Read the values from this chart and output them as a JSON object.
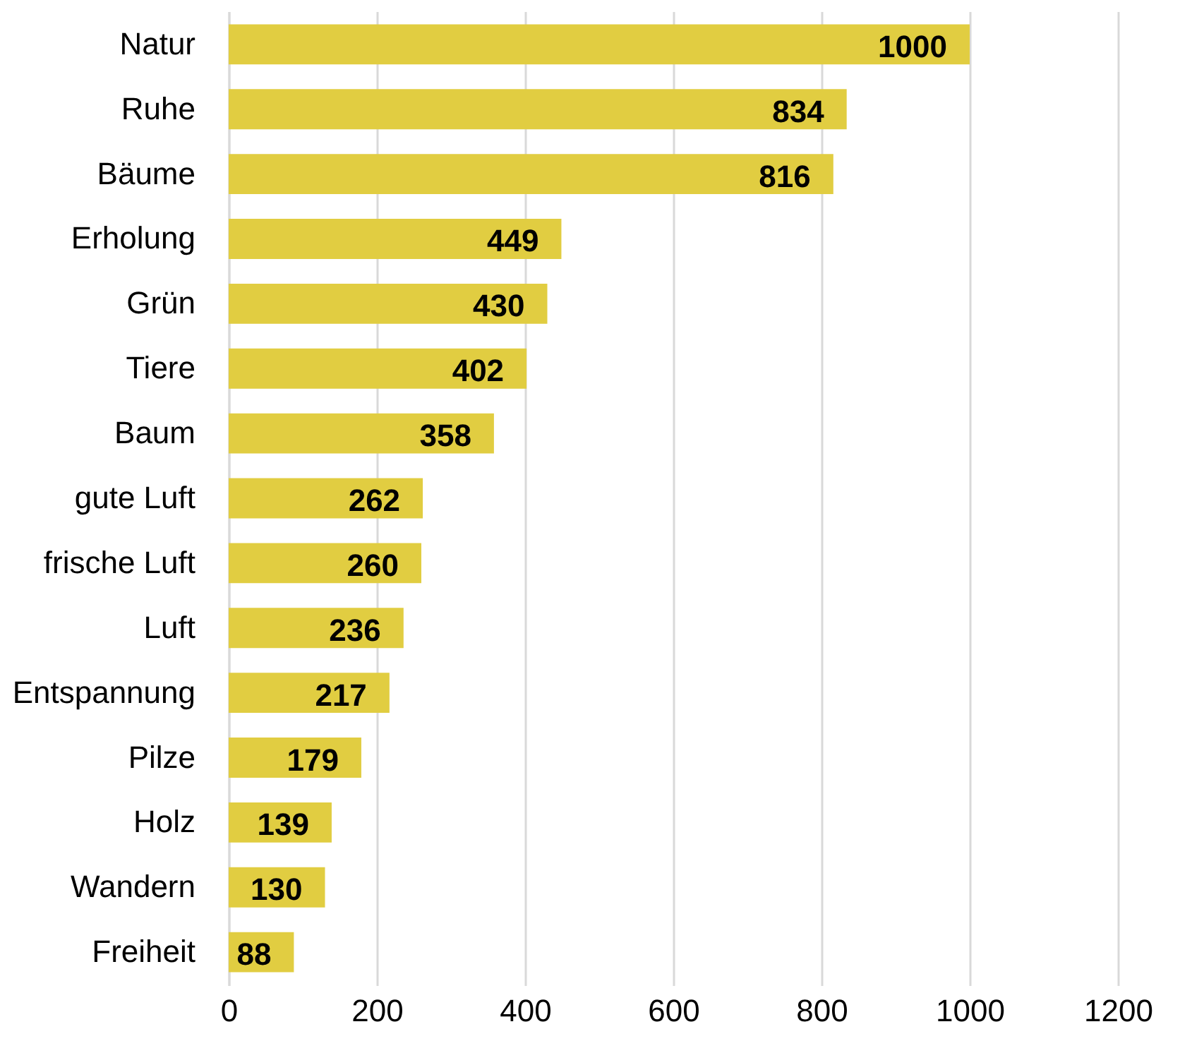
{
  "chart_data": {
    "type": "bar",
    "orientation": "horizontal",
    "categories": [
      "Natur",
      "Ruhe",
      "Bäume",
      "Erholung",
      "Grün",
      "Tiere",
      "Baum",
      "gute Luft",
      "frische Luft",
      "Luft",
      "Entspannung",
      "Pilze",
      "Holz",
      "Wandern",
      "Freiheit"
    ],
    "values": [
      1000,
      834,
      816,
      449,
      430,
      402,
      358,
      262,
      260,
      236,
      217,
      179,
      139,
      130,
      88
    ],
    "color": "#e1cd41",
    "xlim": [
      0,
      1200
    ],
    "xticks": [
      0,
      200,
      400,
      600,
      800,
      1000,
      1200
    ],
    "grid": "x",
    "data_labels": true
  }
}
